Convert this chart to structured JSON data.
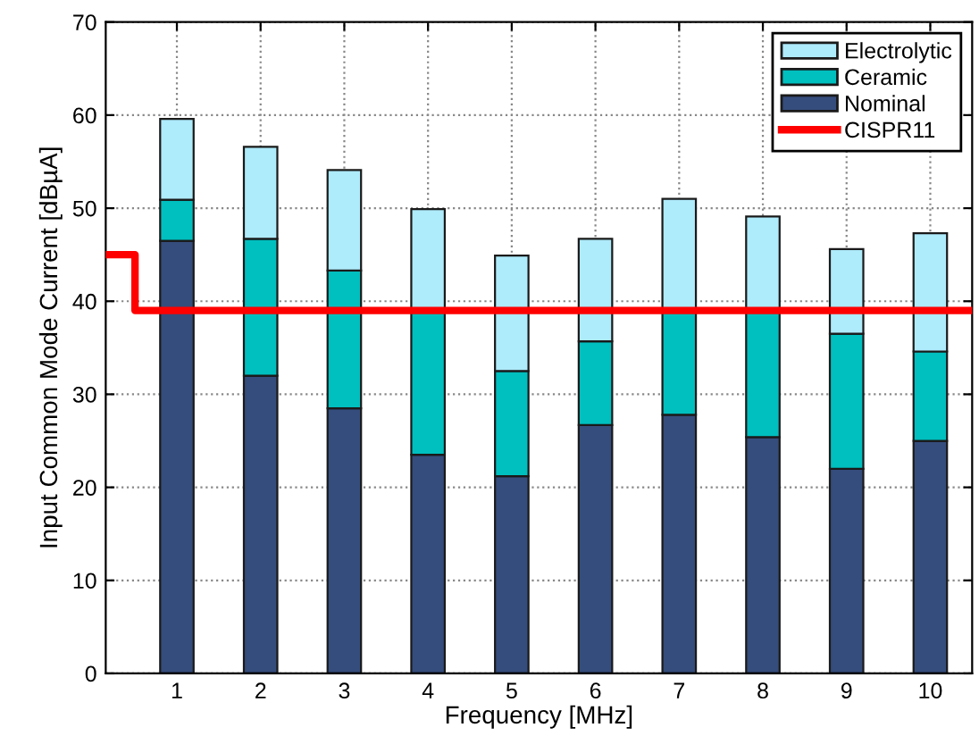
{
  "chart_data": {
    "type": "bar",
    "stacked": true,
    "xlabel": "Frequency [MHz]",
    "ylabel": "Input Common Mode Current [dBµA]",
    "x": [
      1,
      2,
      3,
      4,
      5,
      6,
      7,
      8,
      9,
      10
    ],
    "series": [
      {
        "name": "Nominal",
        "color": "#354d7c",
        "values": [
          46.5,
          32,
          28.5,
          23.5,
          21.2,
          26.7,
          27.8,
          25.4,
          22,
          25
        ]
      },
      {
        "name": "Ceramic",
        "color": "#00bfbf",
        "values": [
          4.4,
          14.7,
          14.8,
          15.5,
          11.3,
          9.0,
          11.2,
          13.6,
          14.5,
          9.6
        ]
      },
      {
        "name": "Electrolytic",
        "color": "#aeebfb",
        "values": [
          8.7,
          9.9,
          10.8,
          10.9,
          12.4,
          11.0,
          12.0,
          10.1,
          9.1,
          12.7
        ]
      },
      {
        "name": "CISPR11",
        "type": "line",
        "color": "#ff0000",
        "x": [
          0.15,
          0.5,
          0.5,
          10.5
        ],
        "values": [
          45,
          45,
          39,
          39
        ]
      }
    ],
    "xlim": [
      0.15,
      10.5
    ],
    "xticks": [
      1,
      2,
      3,
      4,
      5,
      6,
      7,
      8,
      9,
      10
    ],
    "ylim": [
      0,
      70
    ],
    "yticks": [
      0,
      10,
      20,
      30,
      40,
      50,
      60,
      70
    ],
    "grid": true,
    "legend": "top right",
    "line_style": "solid"
  }
}
